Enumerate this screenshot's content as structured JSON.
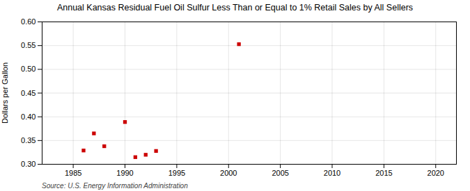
{
  "chart_data": {
    "type": "scatter",
    "title": "Annual Kansas Residual Fuel Oil Sulfur Less Than or Equal to 1% Retail Sales by All Sellers",
    "ylabel": "Dollars per Gallon",
    "annotations": [
      "Source: U.S. Energy Information Administration"
    ],
    "x": [
      1986,
      1987,
      1988,
      1990,
      1991,
      1992,
      1993,
      2001
    ],
    "values": [
      0.329,
      0.365,
      0.338,
      0.389,
      0.315,
      0.32,
      0.328,
      0.553
    ],
    "color": "#cc0000",
    "marker": "square",
    "xlim": [
      1982,
      2022
    ],
    "xticks": [
      1985,
      1990,
      1995,
      2000,
      2005,
      2010,
      2015,
      2020
    ],
    "ylim": [
      0.3,
      0.6
    ],
    "yticks": [
      {
        "value": 0.3,
        "label": "0.30"
      },
      0.35,
      {
        "value": 0.4,
        "label": "0.40"
      },
      0.45,
      {
        "value": 0.5,
        "label": "0.50"
      },
      0.55,
      {
        "value": 0.6,
        "label": "0.60"
      }
    ],
    "grid": true
  }
}
